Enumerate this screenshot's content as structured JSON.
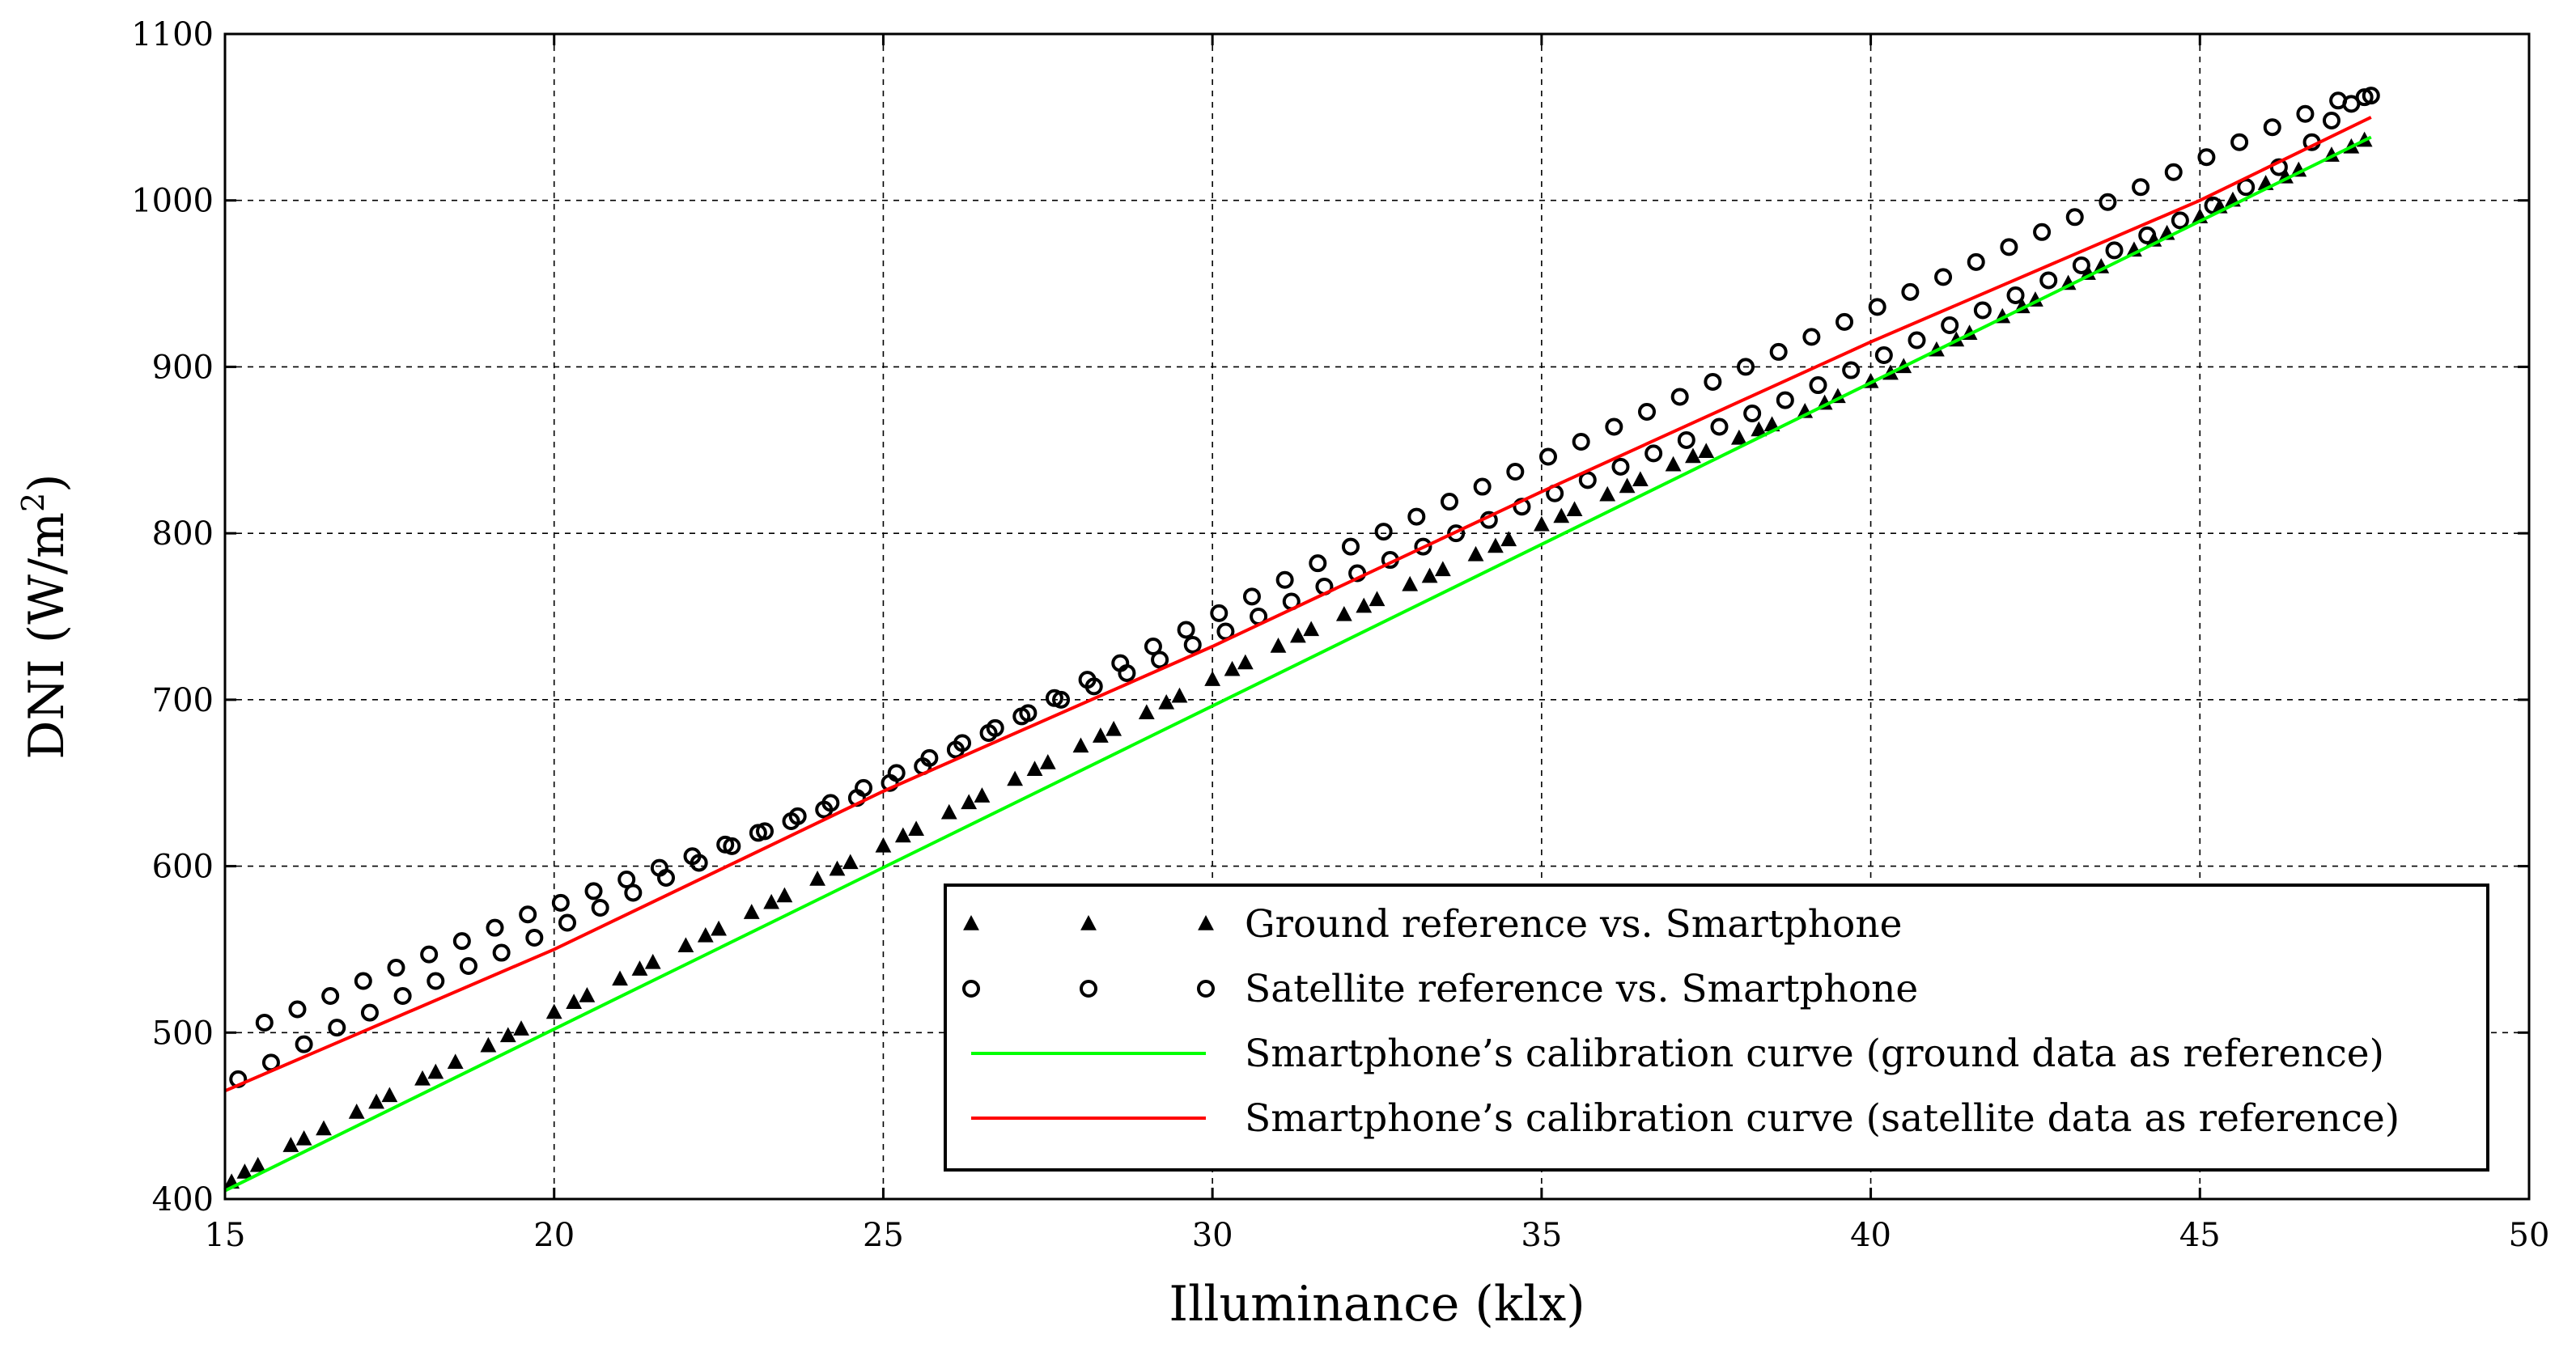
{
  "chart_data": {
    "type": "scatter",
    "title": "",
    "xlabel": "Illuminance (klx)",
    "ylabel": "DNI (W/m²)",
    "ylabel_base": "DNI (W/m",
    "ylabel_sup": "2",
    "ylabel_close": ")",
    "xlim": [
      15,
      50
    ],
    "ylim": [
      400,
      1100
    ],
    "x_ticks": [
      "15",
      "20",
      "25",
      "30",
      "35",
      "40",
      "45",
      "50"
    ],
    "y_ticks": [
      "400",
      "500",
      "600",
      "700",
      "800",
      "900",
      "1000",
      "1100"
    ],
    "grid": true,
    "legend_placement": "lower-right",
    "series": [
      {
        "name": "Ground reference vs. Smartphone",
        "kind": "scatter",
        "marker": "triangle",
        "color": "#000000",
        "points": [
          [
            15.1,
            410
          ],
          [
            15.5,
            420
          ],
          [
            16.0,
            432
          ],
          [
            16.5,
            442
          ],
          [
            17.0,
            452
          ],
          [
            17.5,
            462
          ],
          [
            18.0,
            472
          ],
          [
            18.5,
            482
          ],
          [
            19.0,
            492
          ],
          [
            19.5,
            502
          ],
          [
            20.0,
            512
          ],
          [
            20.5,
            522
          ],
          [
            21.0,
            532
          ],
          [
            21.5,
            542
          ],
          [
            22.0,
            552
          ],
          [
            22.5,
            562
          ],
          [
            23.0,
            572
          ],
          [
            23.5,
            582
          ],
          [
            24.0,
            592
          ],
          [
            24.5,
            602
          ],
          [
            25.0,
            612
          ],
          [
            25.5,
            622
          ],
          [
            26.0,
            632
          ],
          [
            26.5,
            642
          ],
          [
            27.0,
            652
          ],
          [
            27.5,
            662
          ],
          [
            28.0,
            672
          ],
          [
            28.5,
            682
          ],
          [
            29.0,
            692
          ],
          [
            29.5,
            702
          ],
          [
            30.0,
            712
          ],
          [
            30.5,
            722
          ],
          [
            31.0,
            732
          ],
          [
            31.5,
            742
          ],
          [
            32.0,
            751
          ],
          [
            32.5,
            760
          ],
          [
            33.0,
            769
          ],
          [
            33.5,
            778
          ],
          [
            34.0,
            787
          ],
          [
            34.5,
            796
          ],
          [
            35.0,
            805
          ],
          [
            35.5,
            814
          ],
          [
            36.0,
            823
          ],
          [
            36.5,
            832
          ],
          [
            37.0,
            841
          ],
          [
            37.5,
            849
          ],
          [
            38.0,
            857
          ],
          [
            38.5,
            865
          ],
          [
            39.0,
            873
          ],
          [
            39.5,
            882
          ],
          [
            40.0,
            891
          ],
          [
            40.5,
            900
          ],
          [
            41.0,
            910
          ],
          [
            41.5,
            920
          ],
          [
            42.0,
            930
          ],
          [
            42.5,
            940
          ],
          [
            43.0,
            950
          ],
          [
            43.5,
            960
          ],
          [
            44.0,
            970
          ],
          [
            44.5,
            980
          ],
          [
            45.0,
            990
          ],
          [
            45.5,
            1000
          ],
          [
            46.0,
            1010
          ],
          [
            46.5,
            1018
          ],
          [
            47.0,
            1027
          ],
          [
            47.5,
            1036
          ],
          [
            15.3,
            416
          ],
          [
            16.2,
            436
          ],
          [
            17.3,
            458
          ],
          [
            18.2,
            476
          ],
          [
            19.3,
            498
          ],
          [
            20.3,
            518
          ],
          [
            21.3,
            538
          ],
          [
            22.3,
            558
          ],
          [
            23.3,
            578
          ],
          [
            24.3,
            598
          ],
          [
            25.3,
            618
          ],
          [
            26.3,
            638
          ],
          [
            27.3,
            658
          ],
          [
            28.3,
            678
          ],
          [
            29.3,
            698
          ],
          [
            30.3,
            718
          ],
          [
            31.3,
            738
          ],
          [
            32.3,
            756
          ],
          [
            33.3,
            774
          ],
          [
            34.3,
            792
          ],
          [
            35.3,
            810
          ],
          [
            36.3,
            828
          ],
          [
            37.3,
            846
          ],
          [
            38.3,
            862
          ],
          [
            39.3,
            878
          ],
          [
            40.3,
            896
          ],
          [
            41.3,
            916
          ],
          [
            42.3,
            936
          ],
          [
            43.3,
            956
          ],
          [
            44.3,
            976
          ],
          [
            45.3,
            996
          ],
          [
            46.3,
            1014
          ],
          [
            47.3,
            1032
          ]
        ]
      },
      {
        "name": "Satellite reference vs. Smartphone",
        "kind": "scatter",
        "marker": "circle",
        "color": "#000000",
        "points": [
          [
            15.2,
            472
          ],
          [
            15.7,
            482
          ],
          [
            16.2,
            493
          ],
          [
            16.7,
            503
          ],
          [
            17.2,
            512
          ],
          [
            17.7,
            522
          ],
          [
            18.2,
            531
          ],
          [
            18.7,
            540
          ],
          [
            19.2,
            548
          ],
          [
            19.7,
            557
          ],
          [
            20.2,
            566
          ],
          [
            20.7,
            575
          ],
          [
            21.2,
            584
          ],
          [
            21.7,
            593
          ],
          [
            22.2,
            602
          ],
          [
            22.7,
            612
          ],
          [
            23.2,
            621
          ],
          [
            23.7,
            630
          ],
          [
            24.2,
            638
          ],
          [
            24.7,
            647
          ],
          [
            25.2,
            656
          ],
          [
            25.7,
            665
          ],
          [
            26.2,
            674
          ],
          [
            26.7,
            683
          ],
          [
            27.2,
            692
          ],
          [
            27.7,
            700
          ],
          [
            28.2,
            708
          ],
          [
            28.7,
            716
          ],
          [
            29.2,
            724
          ],
          [
            29.7,
            733
          ],
          [
            30.2,
            741
          ],
          [
            30.7,
            750
          ],
          [
            31.2,
            759
          ],
          [
            31.7,
            768
          ],
          [
            32.2,
            776
          ],
          [
            32.7,
            784
          ],
          [
            33.2,
            792
          ],
          [
            33.7,
            800
          ],
          [
            34.2,
            808
          ],
          [
            34.7,
            816
          ],
          [
            35.2,
            824
          ],
          [
            35.7,
            832
          ],
          [
            36.2,
            840
          ],
          [
            36.7,
            848
          ],
          [
            37.2,
            856
          ],
          [
            37.7,
            864
          ],
          [
            38.2,
            872
          ],
          [
            38.7,
            880
          ],
          [
            39.2,
            889
          ],
          [
            39.7,
            898
          ],
          [
            40.2,
            907
          ],
          [
            40.7,
            916
          ],
          [
            41.2,
            925
          ],
          [
            41.7,
            934
          ],
          [
            42.2,
            943
          ],
          [
            42.7,
            952
          ],
          [
            43.2,
            961
          ],
          [
            43.7,
            970
          ],
          [
            44.2,
            979
          ],
          [
            44.7,
            988
          ],
          [
            45.2,
            997
          ],
          [
            45.7,
            1008
          ],
          [
            46.2,
            1020
          ],
          [
            46.7,
            1035
          ],
          [
            47.0,
            1048
          ],
          [
            47.3,
            1058
          ],
          [
            47.5,
            1062
          ],
          [
            15.6,
            506
          ],
          [
            16.1,
            514
          ],
          [
            16.6,
            522
          ],
          [
            17.1,
            531
          ],
          [
            17.6,
            539
          ],
          [
            18.1,
            547
          ],
          [
            18.6,
            555
          ],
          [
            19.1,
            563
          ],
          [
            19.6,
            571
          ],
          [
            20.1,
            578
          ],
          [
            20.6,
            585
          ],
          [
            21.1,
            592
          ],
          [
            21.6,
            599
          ],
          [
            22.1,
            606
          ],
          [
            22.6,
            613
          ],
          [
            23.1,
            620
          ],
          [
            23.6,
            627
          ],
          [
            24.1,
            634
          ],
          [
            24.6,
            641
          ],
          [
            25.1,
            650
          ],
          [
            25.6,
            660
          ],
          [
            26.1,
            670
          ],
          [
            26.6,
            680
          ],
          [
            27.1,
            690
          ],
          [
            27.6,
            701
          ],
          [
            28.1,
            712
          ],
          [
            28.6,
            722
          ],
          [
            29.1,
            732
          ],
          [
            29.6,
            742
          ],
          [
            30.1,
            752
          ],
          [
            30.6,
            762
          ],
          [
            31.1,
            772
          ],
          [
            31.6,
            782
          ],
          [
            32.1,
            792
          ],
          [
            32.6,
            801
          ],
          [
            33.1,
            810
          ],
          [
            33.6,
            819
          ],
          [
            34.1,
            828
          ],
          [
            34.6,
            837
          ],
          [
            35.1,
            846
          ],
          [
            35.6,
            855
          ],
          [
            36.1,
            864
          ],
          [
            36.6,
            873
          ],
          [
            37.1,
            882
          ],
          [
            37.6,
            891
          ],
          [
            38.1,
            900
          ],
          [
            38.6,
            909
          ],
          [
            39.1,
            918
          ],
          [
            39.6,
            927
          ],
          [
            40.1,
            936
          ],
          [
            40.6,
            945
          ],
          [
            41.1,
            954
          ],
          [
            41.6,
            963
          ],
          [
            42.1,
            972
          ],
          [
            42.6,
            981
          ],
          [
            43.1,
            990
          ],
          [
            43.6,
            999
          ],
          [
            44.1,
            1008
          ],
          [
            44.6,
            1017
          ],
          [
            45.1,
            1026
          ],
          [
            45.6,
            1035
          ],
          [
            46.1,
            1044
          ],
          [
            46.6,
            1052
          ],
          [
            47.1,
            1060
          ],
          [
            47.6,
            1063
          ]
        ]
      },
      {
        "name": "Smartphone’s calibration curve (ground data as reference)",
        "kind": "line",
        "color": "#00ff00",
        "points": [
          [
            15.0,
            405
          ],
          [
            47.6,
            1038
          ]
        ]
      },
      {
        "name": "Smartphone’s calibration curve (satellite data as reference)",
        "kind": "line",
        "color": "#ff0000",
        "points": [
          [
            15.0,
            465
          ],
          [
            20,
            550
          ],
          [
            25,
            645
          ],
          [
            30,
            732
          ],
          [
            35,
            825
          ],
          [
            40,
            915
          ],
          [
            45,
            1000
          ],
          [
            47.6,
            1050
          ]
        ]
      }
    ]
  }
}
